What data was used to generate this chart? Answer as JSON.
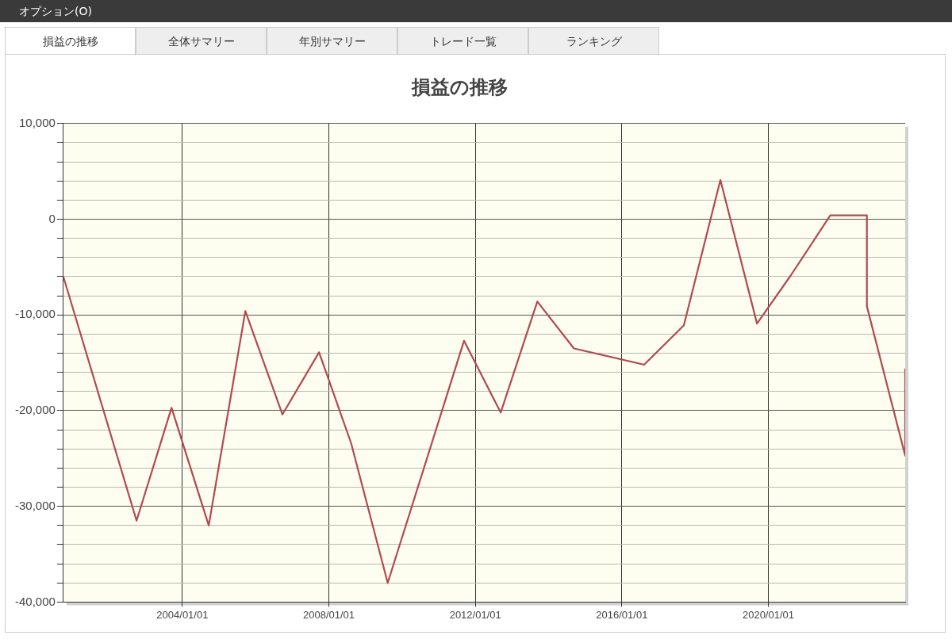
{
  "chart_data": {
    "type": "line",
    "title": "損益の推移",
    "annotations": [
      "オプション(O)",
      "損益の推移",
      "全体サマリー",
      "年別サマリー",
      "トレード一覧",
      "ランキング"
    ],
    "x": [
      "2000-10-01",
      "2002-10-01",
      "2003-09-15",
      "2004-09-20",
      "2005-09-20",
      "2006-09-25",
      "2007-09-25",
      "2008-08-10",
      "2009-08-10",
      "2011-09-10",
      "2012-09-10",
      "2013-09-10",
      "2014-09-10",
      "2016-08-10",
      "2017-09-10",
      "2018-09-10",
      "2019-09-10",
      "2020-08-10",
      "2021-09-10",
      "2022-09-10",
      "2022-09-10",
      "2023-09-27",
      "2023-09-27"
    ],
    "series": [
      {
        "color": "#b04a50",
        "values": [
          -6000,
          -31500,
          -19700,
          -32000,
          -9600,
          -20400,
          -13900,
          -23400,
          -38000,
          -12700,
          -20200,
          -8600,
          -13500,
          -15200,
          -11100,
          4100,
          -10900,
          -5900,
          400,
          400,
          -9100,
          -24700,
          -15600
        ]
      }
    ],
    "xlim": [
      "2000-10-01",
      "2023-09-27"
    ],
    "xticks": [
      {
        "value": "2004-01-01",
        "label": "2004/01/01"
      },
      {
        "value": "2008-01-01",
        "label": "2008/01/01"
      },
      {
        "value": "2012-01-01",
        "label": "2012/01/01"
      },
      {
        "value": "2016-01-01",
        "label": "2016/01/01"
      },
      {
        "value": "2020-01-01",
        "label": "2020/01/01"
      }
    ],
    "ylim": [
      -40000,
      10000
    ],
    "yticks": [
      {
        "value": -40000,
        "label": "-40,000"
      },
      {
        "value": -38000,
        "label": null
      },
      {
        "value": -36000,
        "label": null
      },
      {
        "value": -34000,
        "label": null
      },
      {
        "value": -32000,
        "label": null
      },
      {
        "value": -30000,
        "label": "-30,000"
      },
      {
        "value": -28000,
        "label": null
      },
      {
        "value": -26000,
        "label": null
      },
      {
        "value": -24000,
        "label": null
      },
      {
        "value": -22000,
        "label": null
      },
      {
        "value": -20000,
        "label": "-20,000"
      },
      {
        "value": -18000,
        "label": null
      },
      {
        "value": -16000,
        "label": null
      },
      {
        "value": -14000,
        "label": null
      },
      {
        "value": -12000,
        "label": null
      },
      {
        "value": -10000,
        "label": "-10,000"
      },
      {
        "value": -8000,
        "label": null
      },
      {
        "value": -6000,
        "label": null
      },
      {
        "value": -4000,
        "label": null
      },
      {
        "value": -2000,
        "label": null
      },
      {
        "value": 0,
        "label": "0"
      },
      {
        "value": 2000,
        "label": null
      },
      {
        "value": 4000,
        "label": null
      },
      {
        "value": 6000,
        "label": null
      },
      {
        "value": 8000,
        "label": null
      },
      {
        "value": 10000,
        "label": "10,000"
      }
    ],
    "grid": true,
    "marker": "none",
    "line_style": "solid"
  }
}
